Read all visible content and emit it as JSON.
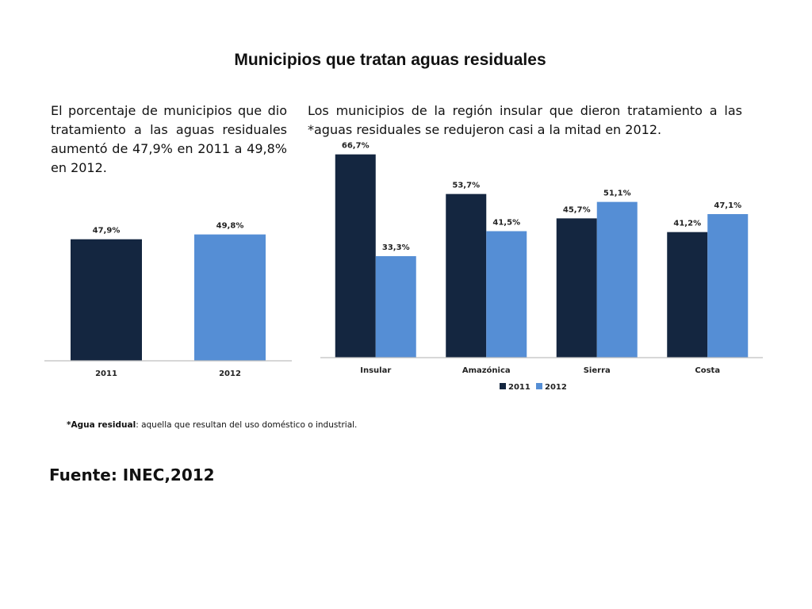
{
  "title": "Municipios que tratan aguas residuales",
  "left_text": "El porcentaje de municipios que dio tratamiento a las aguas residuales aumentó de 47,9% en 2011 a 49,8% en 2012.",
  "right_text": "Los municipios de la región insular que dieron tratamiento a las *aguas residuales se redujeron casi a la mitad en 2012.",
  "footnote": {
    "term": "*Agua residual",
    "definition": ": aquella que resultan del uso doméstico o industrial."
  },
  "source": "Fuente: INEC,2012",
  "colors": {
    "2011": "#142640",
    "2012": "#558ed5"
  },
  "chart_data": [
    {
      "type": "bar",
      "categories": [
        "2011",
        "2012"
      ],
      "values": [
        47.9,
        49.8
      ],
      "labels": [
        "47,9%",
        "49,8%"
      ],
      "colors": [
        "#142640",
        "#558ed5"
      ],
      "ylim": [
        0,
        70
      ]
    },
    {
      "type": "bar",
      "categories": [
        "Insular",
        "Amazónica",
        "Sierra",
        "Costa"
      ],
      "series": [
        {
          "name": "2011",
          "values": [
            66.7,
            53.7,
            45.7,
            41.2
          ],
          "labels": [
            "66,7%",
            "53,7%",
            "45,7%",
            "41,2%"
          ]
        },
        {
          "name": "2012",
          "values": [
            33.3,
            41.5,
            51.1,
            47.1
          ],
          "labels": [
            "33,3%",
            "41,5%",
            "51,1%",
            "47,1%"
          ]
        }
      ],
      "legend": "bottom-center",
      "ylim": [
        0,
        70
      ]
    }
  ]
}
